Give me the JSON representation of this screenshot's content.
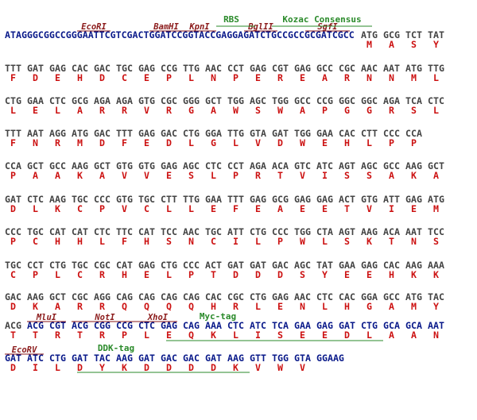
{
  "rows": [
    {
      "leader": "ATAGGGCGGCCGGGAATTCGTCGACTGGATCCGGTACCGAGGAGATCTGCCGCCGCGATCGCC",
      "codons": [
        "ATG",
        "GCG",
        "TCT",
        "TAT"
      ],
      "amino_acids": [
        "M",
        "A",
        "S",
        "Y"
      ],
      "sites": [
        "EcoRI",
        "BamHI",
        "KpnI",
        "BglII",
        "SgfI"
      ],
      "features": [
        "RBS",
        "Kozac Consensus"
      ]
    },
    {
      "codons": [
        "TTT",
        "GAT",
        "GAG",
        "CAC",
        "GAC",
        "TGC",
        "GAG",
        "CCG",
        "TTG",
        "AAC",
        "CCT",
        "GAG",
        "CGT",
        "GAG",
        "GCC",
        "CGC",
        "AAC",
        "AAT",
        "ATG",
        "TTG"
      ],
      "amino_acids": [
        "F",
        "D",
        "E",
        "H",
        "D",
        "C",
        "E",
        "P",
        "L",
        "N",
        "P",
        "E",
        "R",
        "E",
        "A",
        "R",
        "N",
        "N",
        "M",
        "L"
      ]
    },
    {
      "codons": [
        "CTG",
        "GAA",
        "CTC",
        "GCG",
        "AGA",
        "AGA",
        "GTG",
        "CGC",
        "GGG",
        "GCT",
        "TGG",
        "AGC",
        "TGG",
        "GCC",
        "CCG",
        "GGC",
        "GGC",
        "AGA",
        "TCA",
        "CTC"
      ],
      "amino_acids": [
        "L",
        "E",
        "L",
        "A",
        "R",
        "R",
        "V",
        "R",
        "G",
        "A",
        "W",
        "S",
        "W",
        "A",
        "P",
        "G",
        "G",
        "R",
        "S",
        "L"
      ]
    },
    {
      "codons": [
        "TTT",
        "AAT",
        "AGG",
        "ATG",
        "GAC",
        "TTT",
        "GAG",
        "GAC",
        "CTG",
        "GGA",
        "TTG",
        "GTA",
        "GAT",
        "TGG",
        "GAA",
        "CAC",
        "CTT",
        "CCC",
        "CCA"
      ],
      "amino_acids": [
        "F",
        "N",
        "R",
        "M",
        "D",
        "F",
        "E",
        "D",
        "L",
        "G",
        "L",
        "V",
        "D",
        "W",
        "E",
        "H",
        "L",
        "P",
        "P"
      ]
    },
    {
      "codons": [
        "CCA",
        "GCT",
        "GCC",
        "AAG",
        "GCT",
        "GTG",
        "GTG",
        "GAG",
        "AGC",
        "CTC",
        "CCT",
        "AGA",
        "ACA",
        "GTC",
        "ATC",
        "AGT",
        "AGC",
        "GCC",
        "AAG",
        "GCT"
      ],
      "amino_acids": [
        "P",
        "A",
        "A",
        "K",
        "A",
        "V",
        "V",
        "E",
        "S",
        "L",
        "P",
        "R",
        "T",
        "V",
        "I",
        "S",
        "S",
        "A",
        "K",
        "A"
      ]
    },
    {
      "codons": [
        "GAT",
        "CTC",
        "AAG",
        "TGC",
        "CCC",
        "GTG",
        "TGC",
        "CTT",
        "TTG",
        "GAA",
        "TTT",
        "GAG",
        "GCG",
        "GAG",
        "GAG",
        "ACT",
        "GTG",
        "ATT",
        "GAG",
        "ATG"
      ],
      "amino_acids": [
        "D",
        "L",
        "K",
        "C",
        "P",
        "V",
        "C",
        "L",
        "L",
        "E",
        "F",
        "E",
        "A",
        "E",
        "E",
        "T",
        "V",
        "I",
        "E",
        "M"
      ]
    },
    {
      "codons": [
        "CCC",
        "TGC",
        "CAT",
        "CAT",
        "CTC",
        "TTC",
        "CAT",
        "TCC",
        "AAC",
        "TGC",
        "ATT",
        "CTG",
        "CCC",
        "TGG",
        "CTA",
        "AGT",
        "AAG",
        "ACA",
        "AAT",
        "TCC"
      ],
      "amino_acids": [
        "P",
        "C",
        "H",
        "H",
        "L",
        "F",
        "H",
        "S",
        "N",
        "C",
        "I",
        "L",
        "P",
        "W",
        "L",
        "S",
        "K",
        "T",
        "N",
        "S"
      ]
    },
    {
      "codons": [
        "TGC",
        "CCT",
        "CTG",
        "TGC",
        "CGC",
        "CAT",
        "GAG",
        "CTG",
        "CCC",
        "ACT",
        "GAT",
        "GAT",
        "GAC",
        "AGC",
        "TAT",
        "GAA",
        "GAG",
        "CAC",
        "AAG",
        "AAA"
      ],
      "amino_acids": [
        "C",
        "P",
        "L",
        "C",
        "R",
        "H",
        "E",
        "L",
        "P",
        "T",
        "D",
        "D",
        "D",
        "S",
        "Y",
        "E",
        "E",
        "H",
        "K",
        "K"
      ]
    },
    {
      "codons": [
        "GAC",
        "AAG",
        "GCT",
        "CGC",
        "AGG",
        "CAG",
        "CAG",
        "CAG",
        "CAG",
        "CAC",
        "CGC",
        "CTG",
        "GAG",
        "AAC",
        "CTC",
        "CAC",
        "GGA",
        "GCC",
        "ATG",
        "TAC"
      ],
      "amino_acids": [
        "D",
        "K",
        "A",
        "R",
        "R",
        "Q",
        "Q",
        "Q",
        "Q",
        "H",
        "R",
        "L",
        "E",
        "N",
        "L",
        "H",
        "G",
        "A",
        "M",
        "Y"
      ]
    },
    {
      "codons": [
        "ACG",
        "ACG",
        "CGT",
        "ACG",
        "CGG",
        "CCG",
        "CTC",
        "GAG",
        "CAG",
        "AAA",
        "CTC",
        "ATC",
        "TCA",
        "GAA",
        "GAG",
        "GAT",
        "CTG",
        "GCA",
        "GCA",
        "AAT"
      ],
      "amino_acids": [
        "T",
        "T",
        "R",
        "T",
        "R",
        "P",
        "L",
        "E",
        "Q",
        "K",
        "L",
        "I",
        "S",
        "E",
        "E",
        "D",
        "L",
        "A",
        "A",
        "N"
      ],
      "sites": [
        "MluI",
        "NotI",
        "XhoI"
      ],
      "features": [
        "Myc-tag"
      ]
    },
    {
      "codons": [
        "GAT",
        "ATC",
        "CTG",
        "GAT",
        "TAC",
        "AAG",
        "GAT",
        "GAC",
        "GAC",
        "GAT",
        "AAG",
        "GTT",
        "TGG",
        "GTA",
        "GGAAG"
      ],
      "amino_acids": [
        "D",
        "I",
        "L",
        "D",
        "Y",
        "K",
        "D",
        "D",
        "D",
        "D",
        "K",
        "V",
        "W",
        "V"
      ],
      "sites": [
        "EcoRV"
      ],
      "features": [
        "DDK-tag"
      ]
    }
  ]
}
